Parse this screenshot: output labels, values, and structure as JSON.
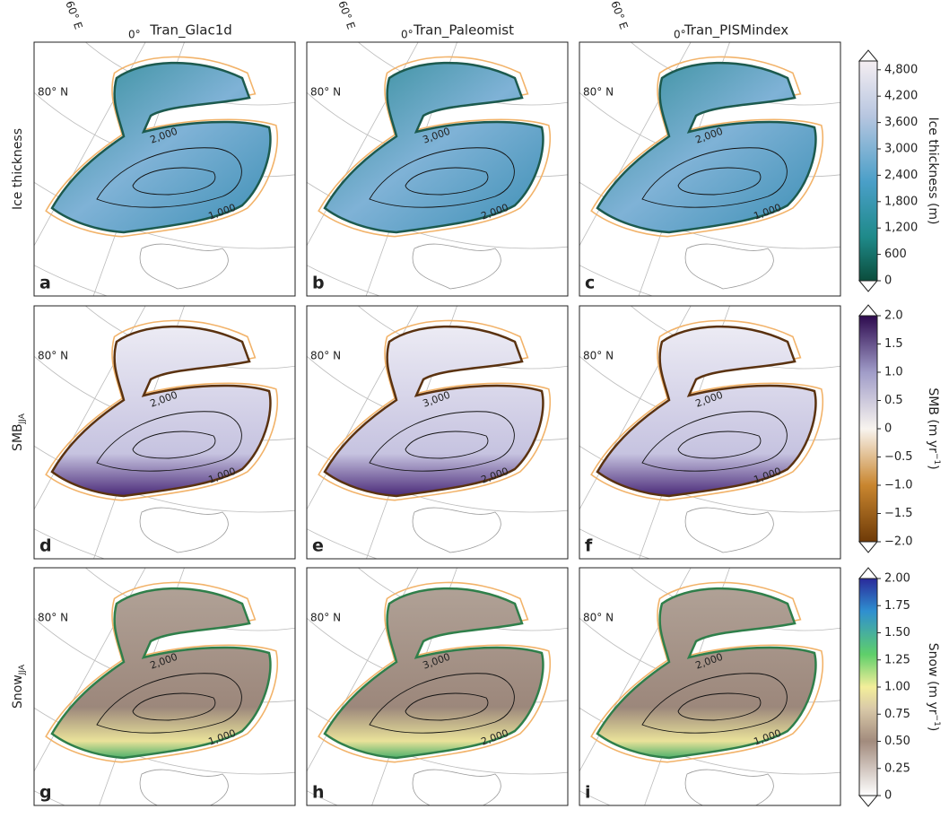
{
  "columns": [
    "Tran_Glac1d",
    "Tran_Paleomist",
    "Tran_PISMindex"
  ],
  "rows": [
    {
      "label": "Ice thickness"
    },
    {
      "label": "SMB",
      "sub": "JJA"
    },
    {
      "label": "Snow",
      "sub": "JJA"
    }
  ],
  "meridian_labels": [
    "60° E",
    "0°"
  ],
  "panels": [
    {
      "letter": "a",
      "lat_label": "80° N",
      "contours": [
        "2,000",
        "1,000"
      ]
    },
    {
      "letter": "b",
      "lat_label": "80° N",
      "contours": [
        "3,000",
        "2,000"
      ]
    },
    {
      "letter": "c",
      "lat_label": "80° N",
      "contours": [
        "2,000",
        "1,000"
      ]
    },
    {
      "letter": "d",
      "lat_label": "80° N",
      "contours": [
        "2,000",
        "1,000"
      ]
    },
    {
      "letter": "e",
      "lat_label": "80° N",
      "contours": [
        "3,000",
        "2,000"
      ]
    },
    {
      "letter": "f",
      "lat_label": "80° N",
      "contours": [
        "2,000",
        "1,000"
      ]
    },
    {
      "letter": "g",
      "lat_label": "80° N",
      "contours": [
        "2,000",
        "1,000"
      ]
    },
    {
      "letter": "h",
      "lat_label": "80° N",
      "contours": [
        "3,000",
        "2,000"
      ]
    },
    {
      "letter": "i",
      "lat_label": "80° N",
      "contours": [
        "2,000",
        "1,000"
      ]
    }
  ],
  "colorbars": [
    {
      "label": "Ice thickness (m)",
      "lim": [
        0,
        5000
      ],
      "ticks": [
        0,
        600,
        {
          "value": 1200,
          "label": "1,200"
        },
        {
          "value": 1800,
          "label": "1,800"
        },
        {
          "value": 2400,
          "label": "2,400"
        },
        {
          "value": 3000,
          "label": "3,000"
        },
        {
          "value": 3600,
          "label": "3,600"
        },
        {
          "value": 4200,
          "label": "4,200"
        },
        {
          "value": 4800,
          "label": "4,800"
        }
      ]
    },
    {
      "label": "SMB (m yr",
      "sup": "−1",
      "label_end": ")",
      "lim": [
        -2,
        2
      ],
      "ticks": [
        {
          "value": -2,
          "label": "−2.0"
        },
        {
          "value": -1.5,
          "label": "−1.5"
        },
        {
          "value": -1,
          "label": "−1.0"
        },
        {
          "value": -0.5,
          "label": "−0.5"
        },
        0,
        0.5,
        {
          "value": 1,
          "label": "1.0"
        },
        1.5,
        {
          "value": 2,
          "label": "2.0"
        }
      ]
    },
    {
      "label": "Snow (m yr",
      "sup": "−1",
      "label_end": ")",
      "lim": [
        0,
        2
      ],
      "ticks": [
        0,
        0.25,
        {
          "value": 0.5,
          "label": "0.50"
        },
        0.75,
        {
          "value": 1,
          "label": "1.00"
        },
        1.25,
        {
          "value": 1.5,
          "label": "1.50"
        },
        1.75,
        {
          "value": 2,
          "label": "2.00"
        }
      ]
    }
  ]
}
